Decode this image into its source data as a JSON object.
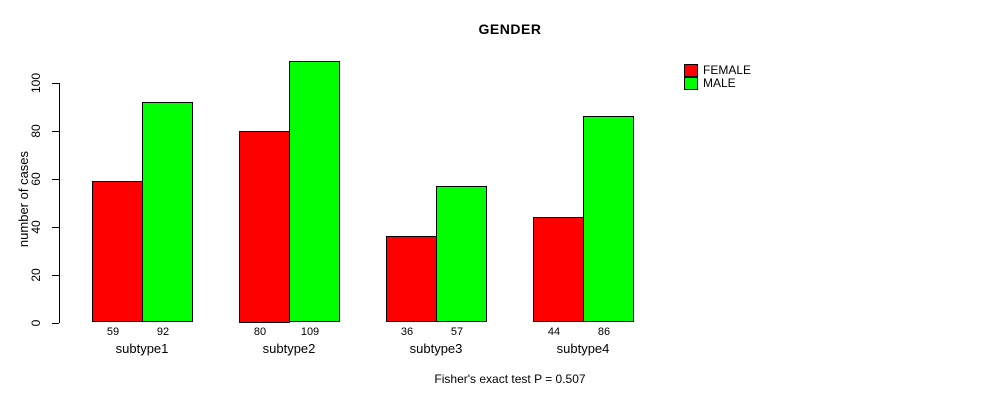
{
  "title": "GENDER",
  "y_axis": {
    "label": "number of cases"
  },
  "footer": "Fisher's exact test P = 0.507",
  "legend": {
    "items": [
      {
        "label": "FEMALE",
        "color": "#ff0000"
      },
      {
        "label": "MALE",
        "color": "#00ff00"
      }
    ]
  },
  "chart_data": {
    "type": "bar",
    "title": "GENDER",
    "xlabel": "",
    "ylabel": "number of cases",
    "categories": [
      "subtype1",
      "subtype2",
      "subtype3",
      "subtype4"
    ],
    "series": [
      {
        "name": "FEMALE",
        "color": "#ff0000",
        "values": [
          59,
          80,
          36,
          44
        ]
      },
      {
        "name": "MALE",
        "color": "#00ff00",
        "values": [
          92,
          109,
          57,
          86
        ]
      }
    ],
    "value_labels": [
      [
        59,
        92
      ],
      [
        80,
        109
      ],
      [
        36,
        57
      ],
      [
        44,
        86
      ]
    ],
    "yticks": [
      0,
      20,
      40,
      60,
      80,
      100
    ],
    "ylim": [
      0,
      112
    ],
    "grid": false,
    "legend_position": "top-right",
    "annotation": "Fisher's exact test P = 0.507"
  }
}
